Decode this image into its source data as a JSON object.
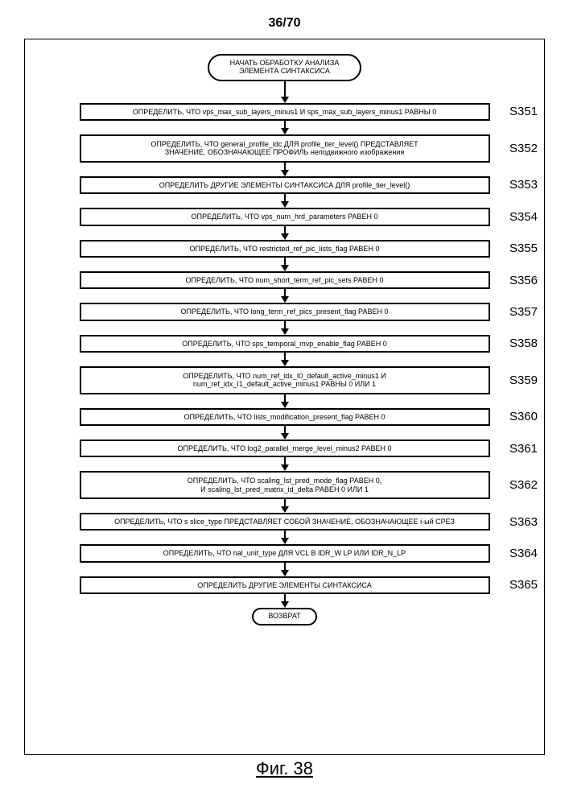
{
  "page_number": "36/70",
  "figure_caption": "Фиг. 38",
  "start_label": "НАЧАТЬ ОБРАБОТКУ АНАЛИЗА\nЭЛЕМЕНТА СИНТАКСИСА",
  "return_label": "ВОЗВРАТ",
  "steps": [
    {
      "id": "S351",
      "text": "ОПРЕДЕЛИТЬ, ЧТО vps_max_sub_layers_minus1 И sps_max_sub_layers_minus1 РАВНЫ 0",
      "lines": 1
    },
    {
      "id": "S352",
      "text": "ОПРЕДЕЛИТЬ, ЧТО general_profile_idc ДЛЯ profile_tier_level() ПРЕДСТАВЛЯЕТ\nЗНАЧЕНИЕ, ОБОЗНАЧАЮЩЕЕ ПРОФИЛЬ неподвижного изображения",
      "lines": 2
    },
    {
      "id": "S353",
      "text": "ОПРЕДЕЛИТЬ ДРУГИЕ ЭЛЕМЕНТЫ СИНТАКСИСА ДЛЯ profile_tier_level()",
      "lines": 1
    },
    {
      "id": "S354",
      "text": "ОПРЕДЕЛИТЬ, ЧТО vps_num_hrd_parameters РАВЕН 0",
      "lines": 1
    },
    {
      "id": "S355",
      "text": "ОПРЕДЕЛИТЬ, ЧТО restricted_ref_pic_lists_flag РАВЕН 0",
      "lines": 1
    },
    {
      "id": "S356",
      "text": "ОПРЕДЕЛИТЬ, ЧТО num_short_term_ref_pic_sets РАВЕН 0",
      "lines": 1
    },
    {
      "id": "S357",
      "text": "ОПРЕДЕЛИТЬ, ЧТО long_term_ref_pics_present_flag РАВЕН 0",
      "lines": 1
    },
    {
      "id": "S358",
      "text": "ОПРЕДЕЛИТЬ, ЧТО sps_temporal_mvp_enable_flag РАВЕН 0",
      "lines": 1
    },
    {
      "id": "S359",
      "text": "ОПРЕДЕЛИТЬ, ЧТО num_ref_idx_I0_default_active_minus1 И\nnum_ref_idx_I1_default_active_minus1 РАВНЫ 0 ИЛИ 1",
      "lines": 2
    },
    {
      "id": "S360",
      "text": "ОПРЕДЕЛИТЬ, ЧТО lists_modification_present_flag РАВЕН 0",
      "lines": 1
    },
    {
      "id": "S361",
      "text": "ОПРЕДЕЛИТЬ, ЧТО log2_parallel_merge_level_minus2 РАВЕН 0",
      "lines": 1
    },
    {
      "id": "S362",
      "text": "ОПРЕДЕЛИТЬ, ЧТО scaling_lst_pred_mode_flag РАВЕН 0,\nИ scaling_lst_pred_matrix_id_delta РАВЕН 0 ИЛИ 1",
      "lines": 2
    },
    {
      "id": "S363",
      "text": "ОПРЕДЕЛИТЬ, ЧТО s slice_type ПРЕДСТАВЛЯЕТ СОБОЙ ЗНАЧЕНИЕ, ОБОЗНАЧАЮЩЕЕ i-ый СРЕЗ",
      "lines": 1
    },
    {
      "id": "S364",
      "text": "ОПРЕДЕЛИТЬ, ЧТО nal_unit_type ДЛЯ VCL В IDR_W LP ИЛИ IDR_N_LP",
      "lines": 1
    },
    {
      "id": "S365",
      "text": "ОПРЕДЕЛИТЬ ДРУГИЕ ЭЛЕМЕНТЫ СИНТАКСИСА",
      "lines": 1
    }
  ],
  "style": {
    "arrow_short_height": 10,
    "arrow_long_height": 20,
    "border_color": "#000000",
    "bg_color": "#ffffff",
    "process_fontsize": 9,
    "step_label_fontsize": 15,
    "page_number_fontsize": 16,
    "figure_caption_fontsize": 22
  }
}
